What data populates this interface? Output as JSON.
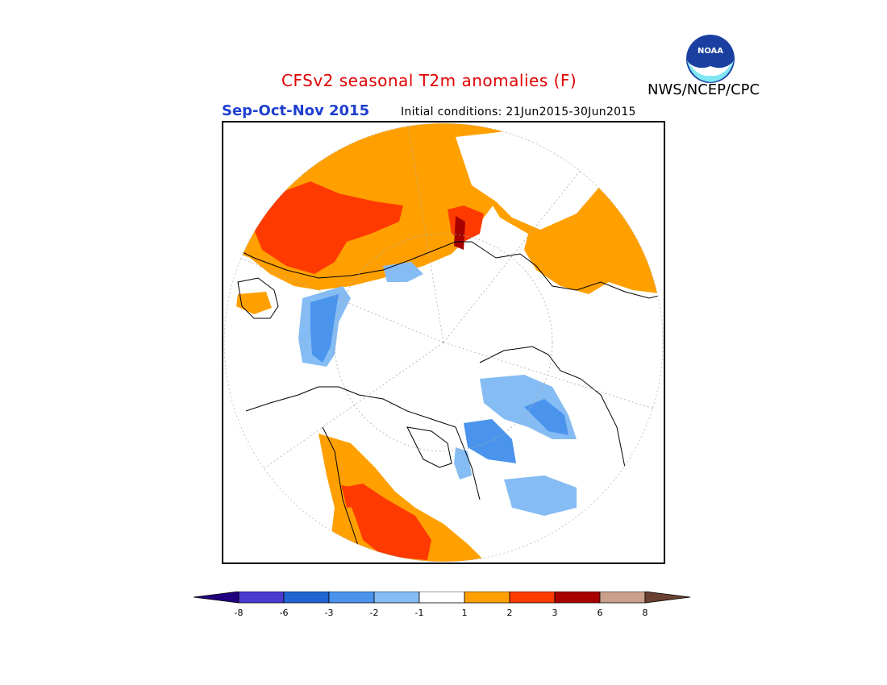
{
  "header": {
    "title": "CFSv2 seasonal T2m anomalies (F)",
    "agency": "NWS/NCEP/CPC",
    "logo_text": "NOAA",
    "season": "Sep-Oct-Nov 2015",
    "initial_conditions": "Initial conditions: 21Jun2015-30Jun2015"
  },
  "map": {
    "projection": "north-polar-stereographic"
  },
  "legend": {
    "tick_labels": [
      "-8",
      "-6",
      "-3",
      "-2",
      "-1",
      "1",
      "2",
      "3",
      "6",
      "8"
    ],
    "colors": [
      "#220080",
      "#4a3ad0",
      "#1f64d2",
      "#4a94ee",
      "#86bcf4",
      "#ffffff",
      "#ffa000",
      "#ff3a00",
      "#a80000",
      "#c8a08c",
      "#6a4030"
    ]
  }
}
